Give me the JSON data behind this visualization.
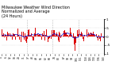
{
  "title": "Milwaukee Weather Wind Direction\nNormalized and Average\n(24 Hours)",
  "title_fontsize": 3.5,
  "background_color": "#ffffff",
  "plot_bg_color": "#ffffff",
  "bar_color": "#dd0000",
  "line_color": "#0000cc",
  "grid_color": "#bbbbbb",
  "ylim": [
    -1.0,
    1.0
  ],
  "ytick_values": [
    1.0,
    0.5,
    0.0,
    -0.5,
    -1.0
  ],
  "ytick_labels": [
    "1",
    ".5",
    "0",
    "-.5",
    "-1"
  ],
  "n_points": 144,
  "noise_scale": 0.18,
  "avg_window": 10,
  "dip_index": 103,
  "dip_value": -0.8,
  "baseline": 0.1,
  "n_vgrid": 3,
  "n_xticks": 24
}
